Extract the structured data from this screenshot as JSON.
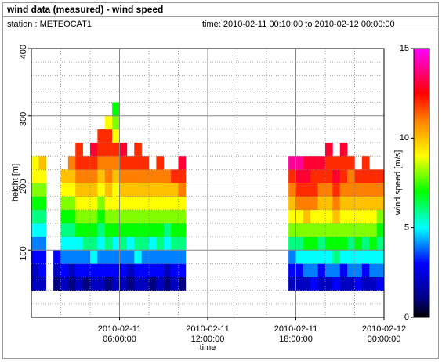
{
  "chart_data": {
    "type": "heatmap",
    "title": "wind data (measured) - wind speed",
    "station": "station : METEOCAT1",
    "time_range": "time: 2010-02-11 00:10:00 to 2010-02-12 00:00:00",
    "xlabel": "time",
    "ylabel": "height [m]",
    "colorbar_label": "wind speed [m/s]",
    "xlim": [
      "2010-02-11T00:00",
      "2010-02-12T00:00"
    ],
    "xticks": [
      {
        "value": "2010-02-11T06:00",
        "label": [
          "2010-02-11",
          "06:00:00"
        ]
      },
      {
        "value": "2010-02-11T12:00",
        "label": [
          "2010-02-11",
          "12:00:00"
        ]
      },
      {
        "value": "2010-02-11T18:00",
        "label": [
          "2010-02-11",
          "18:00:00"
        ]
      },
      {
        "value": "2010-02-12T00:00",
        "label": [
          "2010-02-12",
          "00:00:00"
        ]
      }
    ],
    "xminorticks": [
      "2010-02-11T02:00",
      "2010-02-11T04:00",
      "2010-02-11T08:00",
      "2010-02-11T10:00",
      "2010-02-11T14:00",
      "2010-02-11T16:00",
      "2010-02-11T20:00",
      "2010-02-11T22:00"
    ],
    "ylim": [
      0,
      400
    ],
    "yticks": [
      100,
      200,
      300,
      400
    ],
    "yminorticks": [
      20,
      40,
      60,
      80,
      120,
      140,
      160,
      180,
      220,
      240,
      260,
      280,
      320,
      340,
      360,
      380
    ],
    "clim": [
      0,
      15
    ],
    "cticks": [
      0,
      5,
      10,
      15
    ],
    "colorscale": [
      [
        0,
        "#000000"
      ],
      [
        1,
        "#000080"
      ],
      [
        3,
        "#0000ff"
      ],
      [
        5,
        "#00ffff"
      ],
      [
        7,
        "#00ff00"
      ],
      [
        9,
        "#ffff00"
      ],
      [
        11,
        "#ff8000"
      ],
      [
        12.5,
        "#ff0000"
      ],
      [
        15,
        "#ff00ff"
      ]
    ],
    "grid": true,
    "y_bins": [
      40,
      60,
      80,
      100,
      120,
      140,
      160,
      180,
      200,
      220,
      240,
      260,
      280,
      300,
      320
    ],
    "x": [
      "2010-02-11T00:15",
      "2010-02-11T00:45",
      "2010-02-11T01:15",
      "2010-02-11T01:45",
      "2010-02-11T02:15",
      "2010-02-11T02:45",
      "2010-02-11T03:15",
      "2010-02-11T03:45",
      "2010-02-11T04:15",
      "2010-02-11T04:45",
      "2010-02-11T05:15",
      "2010-02-11T05:45",
      "2010-02-11T06:15",
      "2010-02-11T06:45",
      "2010-02-11T07:15",
      "2010-02-11T07:45",
      "2010-02-11T08:15",
      "2010-02-11T08:45",
      "2010-02-11T09:15",
      "2010-02-11T09:45",
      "2010-02-11T10:15",
      "2010-02-11T17:45",
      "2010-02-11T18:15",
      "2010-02-11T18:45",
      "2010-02-11T19:15",
      "2010-02-11T19:45",
      "2010-02-11T20:15",
      "2010-02-11T20:45",
      "2010-02-11T21:15",
      "2010-02-11T21:45",
      "2010-02-11T22:15",
      "2010-02-11T22:45",
      "2010-02-11T23:15",
      "2010-02-11T23:45"
    ],
    "z": [
      [
        2,
        2,
        3,
        4,
        5,
        6,
        7,
        8,
        9,
        9,
        null,
        null,
        null,
        null
      ],
      [
        2,
        3,
        3,
        4,
        5,
        6,
        7,
        8,
        9,
        10,
        null,
        null,
        null,
        null
      ],
      [
        null,
        null,
        null,
        null,
        null,
        null,
        null,
        null,
        null,
        null,
        null,
        null,
        null,
        null
      ],
      [
        1,
        2,
        3,
        null,
        null,
        null,
        null,
        null,
        null,
        null,
        null,
        null,
        null,
        null
      ],
      [
        2,
        3,
        4,
        5,
        6,
        7,
        8,
        9,
        10,
        null,
        null,
        null,
        null,
        null
      ],
      [
        1,
        2,
        4,
        5,
        6,
        7,
        8,
        9,
        10,
        11,
        null,
        null,
        null,
        null
      ],
      [
        2,
        3,
        4,
        5,
        7,
        8,
        9,
        10,
        11,
        12,
        12,
        null,
        null,
        null
      ],
      [
        1,
        3,
        4,
        6,
        7,
        8,
        9,
        10,
        11,
        12,
        null,
        null,
        null,
        null
      ],
      [
        2,
        3,
        5,
        6,
        7,
        8,
        9,
        10,
        11,
        12,
        13,
        null,
        null,
        null
      ],
      [
        2,
        3,
        4,
        5,
        6,
        7,
        8,
        9,
        10,
        11,
        12,
        12,
        null,
        null
      ],
      [
        1,
        3,
        4,
        6,
        7,
        8,
        9,
        10,
        11,
        11,
        12,
        12,
        9,
        null
      ],
      [
        2,
        3,
        4,
        5,
        7,
        8,
        9,
        9,
        10,
        11,
        12,
        9,
        8,
        7
      ],
      [
        2,
        3,
        4,
        6,
        7,
        8,
        9,
        10,
        11,
        12,
        13,
        null,
        null,
        null
      ],
      [
        1,
        2,
        4,
        5,
        7,
        8,
        9,
        10,
        11,
        12,
        null,
        null,
        null,
        null
      ],
      [
        2,
        3,
        5,
        6,
        7,
        8,
        9,
        10,
        11,
        12,
        12,
        null,
        null,
        null
      ],
      [
        2,
        3,
        4,
        6,
        7,
        8,
        9,
        10,
        11,
        12,
        null,
        null,
        null,
        null
      ],
      [
        1,
        3,
        4,
        5,
        7,
        8,
        9,
        10,
        11,
        null,
        null,
        null,
        null,
        null
      ],
      [
        2,
        3,
        4,
        6,
        7,
        8,
        9,
        10,
        11,
        12,
        null,
        null,
        null,
        null
      ],
      [
        1,
        2,
        4,
        5,
        6,
        8,
        9,
        10,
        11,
        null,
        null,
        null,
        null,
        null
      ],
      [
        2,
        3,
        4,
        6,
        7,
        8,
        9,
        10,
        12,
        null,
        null,
        null,
        null,
        null
      ],
      [
        1,
        3,
        4,
        6,
        7,
        8,
        9,
        11,
        12,
        13,
        null,
        null,
        null,
        null
      ],
      [
        2,
        3,
        4,
        6,
        8,
        9,
        10,
        11,
        12,
        14,
        null,
        null,
        null,
        null
      ],
      [
        2,
        3,
        5,
        6,
        8,
        9,
        11,
        12,
        13,
        14,
        null,
        null,
        null,
        null
      ],
      [
        2,
        4,
        5,
        7,
        8,
        10,
        11,
        12,
        13,
        13,
        null,
        null,
        null,
        null
      ],
      [
        3,
        4,
        5,
        7,
        8,
        9,
        11,
        12,
        12,
        13,
        null,
        null,
        null,
        null
      ],
      [
        2,
        3,
        5,
        6,
        8,
        9,
        10,
        11,
        12,
        13,
        null,
        null,
        null,
        null
      ],
      [
        2,
        4,
        5,
        7,
        8,
        9,
        10,
        11,
        12,
        12,
        13,
        null,
        null,
        null
      ],
      [
        3,
        4,
        6,
        7,
        8,
        10,
        11,
        12,
        13,
        12,
        null,
        null,
        null,
        null
      ],
      [
        2,
        3,
        5,
        7,
        8,
        9,
        10,
        11,
        12,
        12,
        13,
        null,
        null,
        null
      ],
      [
        2,
        4,
        5,
        6,
        8,
        9,
        10,
        11,
        11,
        12,
        null,
        null,
        null,
        null
      ],
      [
        3,
        4,
        5,
        7,
        8,
        9,
        10,
        11,
        12,
        null,
        null,
        null,
        null,
        null
      ],
      [
        2,
        3,
        5,
        6,
        8,
        9,
        10,
        11,
        12,
        12,
        null,
        null,
        null,
        null
      ],
      [
        2,
        4,
        5,
        7,
        8,
        9,
        10,
        11,
        12,
        null,
        null,
        null,
        null,
        null
      ],
      [
        3,
        4,
        5,
        6,
        7,
        8,
        10,
        11,
        12,
        null,
        null,
        null,
        null,
        null
      ]
    ]
  }
}
